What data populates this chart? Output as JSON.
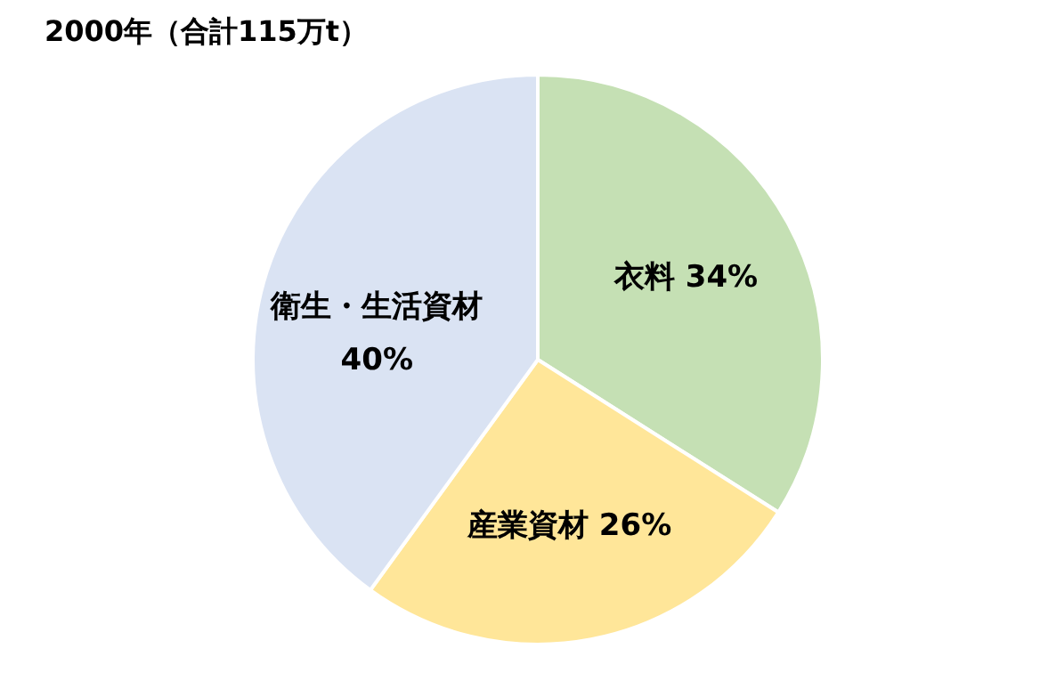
{
  "chart_data": {
    "type": "pie",
    "title": "2000年（合計115万t）",
    "categories": [
      "衣料",
      "産業資材",
      "衛生・生活資材"
    ],
    "values": [
      34,
      26,
      40
    ],
    "value_labels": [
      "34%",
      "26%",
      "40%"
    ],
    "colors": [
      "#c5e0b4",
      "#ffe699",
      "#dae3f3"
    ]
  }
}
